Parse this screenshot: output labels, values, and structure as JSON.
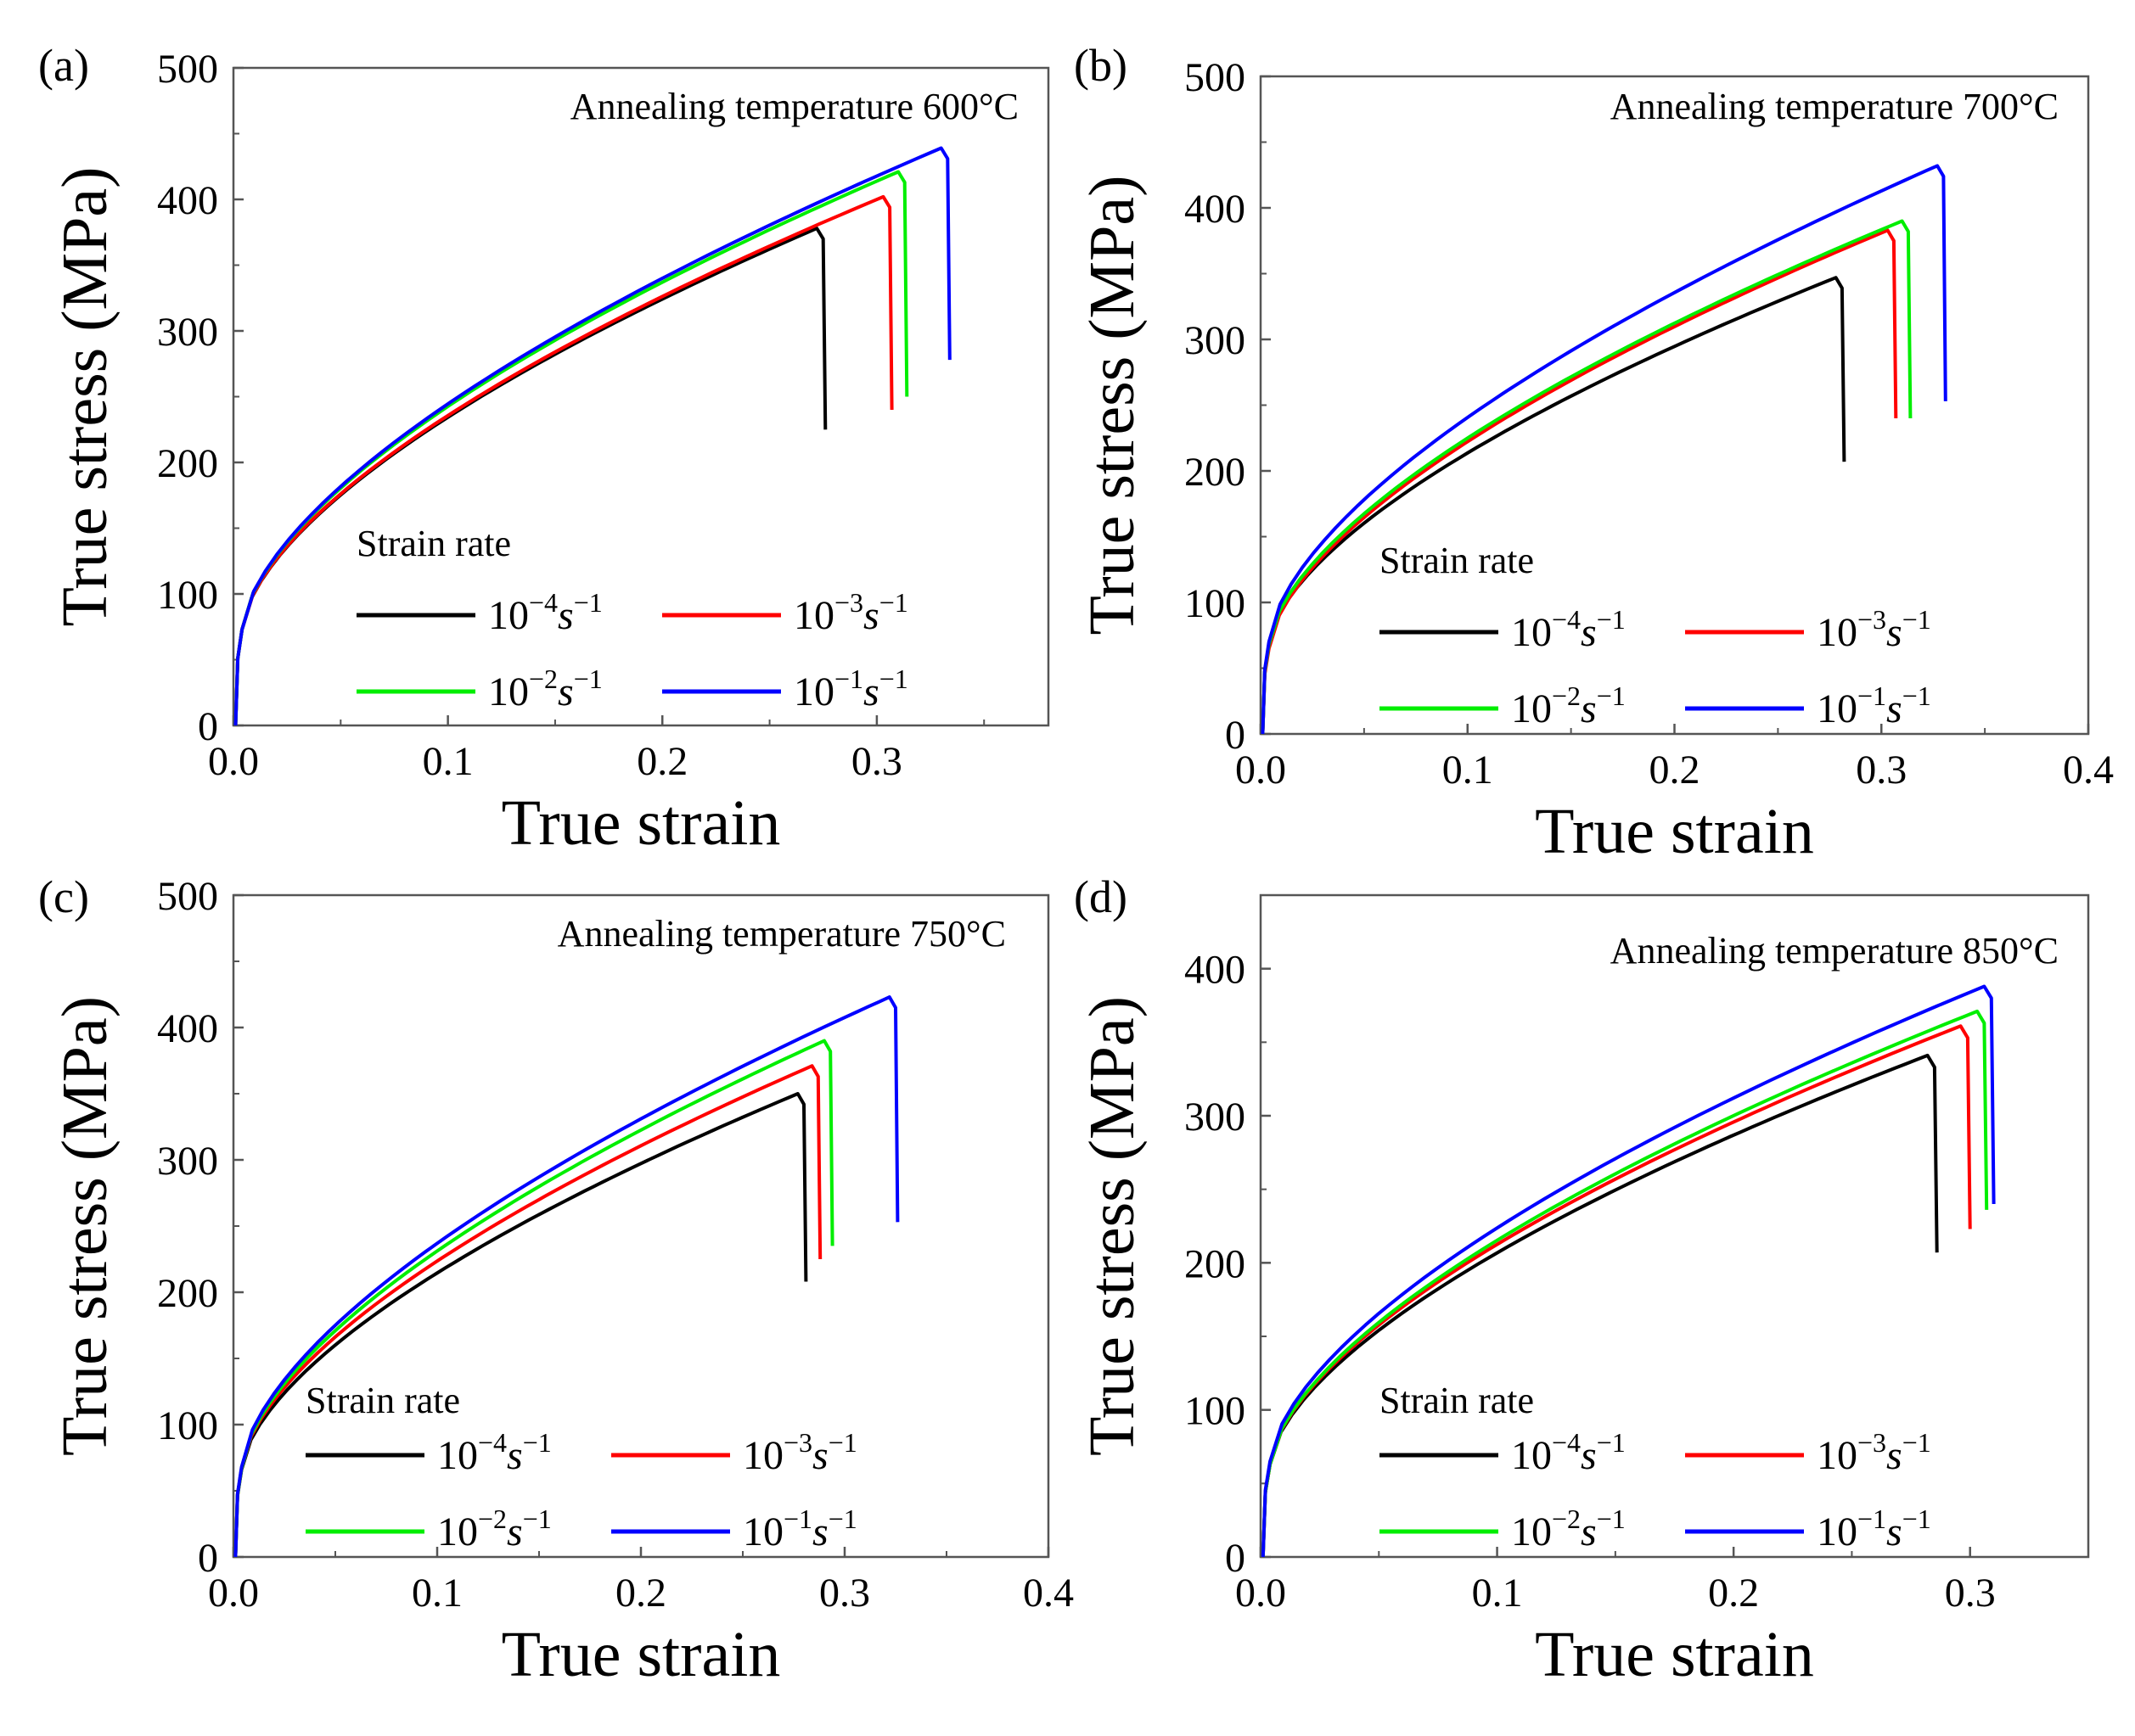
{
  "figure": {
    "description_label": "Four-panel true stress-strain figure"
  },
  "panels": [
    {
      "label": "(a)",
      "annotation": "Annealing temperature  600°C",
      "legend_title": "Strain rate",
      "x_ticks": [
        "0.0",
        "0.1",
        "0.2",
        "0.3"
      ],
      "y_ticks": [
        "0",
        "100",
        "200",
        "300",
        "400",
        "500"
      ]
    },
    {
      "label": "(b)",
      "annotation": "Annealing temperature  700°C",
      "legend_title": "Strain rate",
      "x_ticks": [
        "0.0",
        "0.1",
        "0.2",
        "0.3",
        "0.4"
      ],
      "y_ticks": [
        "0",
        "100",
        "200",
        "300",
        "400",
        "500"
      ]
    },
    {
      "label": "(c)",
      "annotation": "Annealing  temperature  750°C",
      "legend_title": "Strain rate",
      "x_ticks": [
        "0.0",
        "0.1",
        "0.2",
        "0.3",
        "0.4"
      ],
      "y_ticks": [
        "0",
        "100",
        "200",
        "300",
        "400",
        "500"
      ]
    },
    {
      "label": "(d)",
      "annotation": "Annealing temperature  850°C",
      "legend_title": "Strain rate",
      "x_ticks": [
        "0.0",
        "0.1",
        "0.2",
        "0.3"
      ],
      "y_ticks": [
        "0",
        "100",
        "200",
        "300",
        "400"
      ]
    }
  ],
  "series_colors": {
    "1e-4": "#000000",
    "1e-3": "#ff0000",
    "1e-2": "#00ee00",
    "1e-1": "#0000ff"
  },
  "chart_data": [
    {
      "type": "line",
      "title": "Annealing temperature 600°C",
      "xlabel": "True strain",
      "ylabel": "True stress (MPa)",
      "xlim": [
        0,
        0.38
      ],
      "ylim": [
        0,
        500
      ],
      "legend_title": "Strain rate",
      "series": [
        {
          "name": "10^-4 s^-1",
          "base": "10",
          "exp": "−4",
          "unit": "s",
          "unit_exp": "−1",
          "color": "#000000",
          "yield": 73,
          "fracture_strain": 0.272,
          "peak_stress": 378,
          "drop_stress": 225
        },
        {
          "name": "10^-3 s^-1",
          "base": "10",
          "exp": "−3",
          "unit": "s",
          "unit_exp": "−1",
          "color": "#ff0000",
          "yield": 73,
          "fracture_strain": 0.303,
          "peak_stress": 402,
          "drop_stress": 240
        },
        {
          "name": "10^-2 s^-1",
          "base": "10",
          "exp": "−2",
          "unit": "s",
          "unit_exp": "−1",
          "color": "#00ee00",
          "yield": 73,
          "fracture_strain": 0.31,
          "peak_stress": 421,
          "drop_stress": 250
        },
        {
          "name": "10^-1 s^-1",
          "base": "10",
          "exp": "−1",
          "unit": "s",
          "unit_exp": "−1",
          "color": "#0000ff",
          "yield": 73,
          "fracture_strain": 0.33,
          "peak_stress": 439,
          "drop_stress": 278
        }
      ]
    },
    {
      "type": "line",
      "title": "Annealing temperature 700°C",
      "xlabel": "True strain",
      "ylabel": "True stress (MPa)",
      "xlim": [
        0,
        0.4
      ],
      "ylim": [
        0,
        500
      ],
      "legend_title": "Strain rate",
      "series": [
        {
          "name": "10^-4 s^-1",
          "base": "10",
          "exp": "−4",
          "unit": "s",
          "unit_exp": "−1",
          "color": "#000000",
          "yield": 68,
          "fracture_strain": 0.278,
          "peak_stress": 347,
          "drop_stress": 207
        },
        {
          "name": "10^-3 s^-1",
          "base": "10",
          "exp": "−3",
          "unit": "s",
          "unit_exp": "−1",
          "color": "#ff0000",
          "yield": 65,
          "fracture_strain": 0.303,
          "peak_stress": 383,
          "drop_stress": 240
        },
        {
          "name": "10^-2 s^-1",
          "base": "10",
          "exp": "−2",
          "unit": "s",
          "unit_exp": "−1",
          "color": "#00ee00",
          "yield": 68,
          "fracture_strain": 0.31,
          "peak_stress": 390,
          "drop_stress": 240
        },
        {
          "name": "10^-1 s^-1",
          "base": "10",
          "exp": "−1",
          "unit": "s",
          "unit_exp": "−1",
          "color": "#0000ff",
          "yield": 70,
          "fracture_strain": 0.327,
          "peak_stress": 432,
          "drop_stress": 253
        }
      ]
    },
    {
      "type": "line",
      "title": "Annealing temperature 750°C",
      "xlabel": "True strain",
      "ylabel": "True stress (MPa)",
      "xlim": [
        0,
        0.4
      ],
      "ylim": [
        0,
        500
      ],
      "legend_title": "Strain rate",
      "series": [
        {
          "name": "10^-4 s^-1",
          "base": "10",
          "exp": "−4",
          "unit": "s",
          "unit_exp": "−1",
          "color": "#000000",
          "yield": 66,
          "fracture_strain": 0.277,
          "peak_stress": 350,
          "drop_stress": 208
        },
        {
          "name": "10^-3 s^-1",
          "base": "10",
          "exp": "−3",
          "unit": "s",
          "unit_exp": "−1",
          "color": "#ff0000",
          "yield": 67,
          "fracture_strain": 0.284,
          "peak_stress": 371,
          "drop_stress": 225
        },
        {
          "name": "10^-2 s^-1",
          "base": "10",
          "exp": "−2",
          "unit": "s",
          "unit_exp": "−1",
          "color": "#00ee00",
          "yield": 67,
          "fracture_strain": 0.29,
          "peak_stress": 390,
          "drop_stress": 235
        },
        {
          "name": "10^-1 s^-1",
          "base": "10",
          "exp": "−1",
          "unit": "s",
          "unit_exp": "−1",
          "color": "#0000ff",
          "yield": 68,
          "fracture_strain": 0.322,
          "peak_stress": 423,
          "drop_stress": 253
        }
      ]
    },
    {
      "type": "line",
      "title": "Annealing temperature 850°C",
      "xlabel": "True strain",
      "ylabel": "True stress (MPa)",
      "xlim": [
        0,
        0.35
      ],
      "ylim": [
        0,
        450
      ],
      "legend_title": "Strain rate",
      "series": [
        {
          "name": "10^-4 s^-1",
          "base": "10",
          "exp": "−4",
          "unit": "s",
          "unit_exp": "−1",
          "color": "#000000",
          "yield": 63,
          "fracture_strain": 0.282,
          "peak_stress": 341,
          "drop_stress": 207
        },
        {
          "name": "10^-3 s^-1",
          "base": "10",
          "exp": "−3",
          "unit": "s",
          "unit_exp": "−1",
          "color": "#ff0000",
          "yield": 63,
          "fracture_strain": 0.296,
          "peak_stress": 361,
          "drop_stress": 223
        },
        {
          "name": "10^-2 s^-1",
          "base": "10",
          "exp": "−2",
          "unit": "s",
          "unit_exp": "−1",
          "color": "#00ee00",
          "yield": 63,
          "fracture_strain": 0.303,
          "peak_stress": 371,
          "drop_stress": 236
        },
        {
          "name": "10^-1 s^-1",
          "base": "10",
          "exp": "−1",
          "unit": "s",
          "unit_exp": "−1",
          "color": "#0000ff",
          "yield": 65,
          "fracture_strain": 0.306,
          "peak_stress": 388,
          "drop_stress": 240
        }
      ]
    }
  ]
}
